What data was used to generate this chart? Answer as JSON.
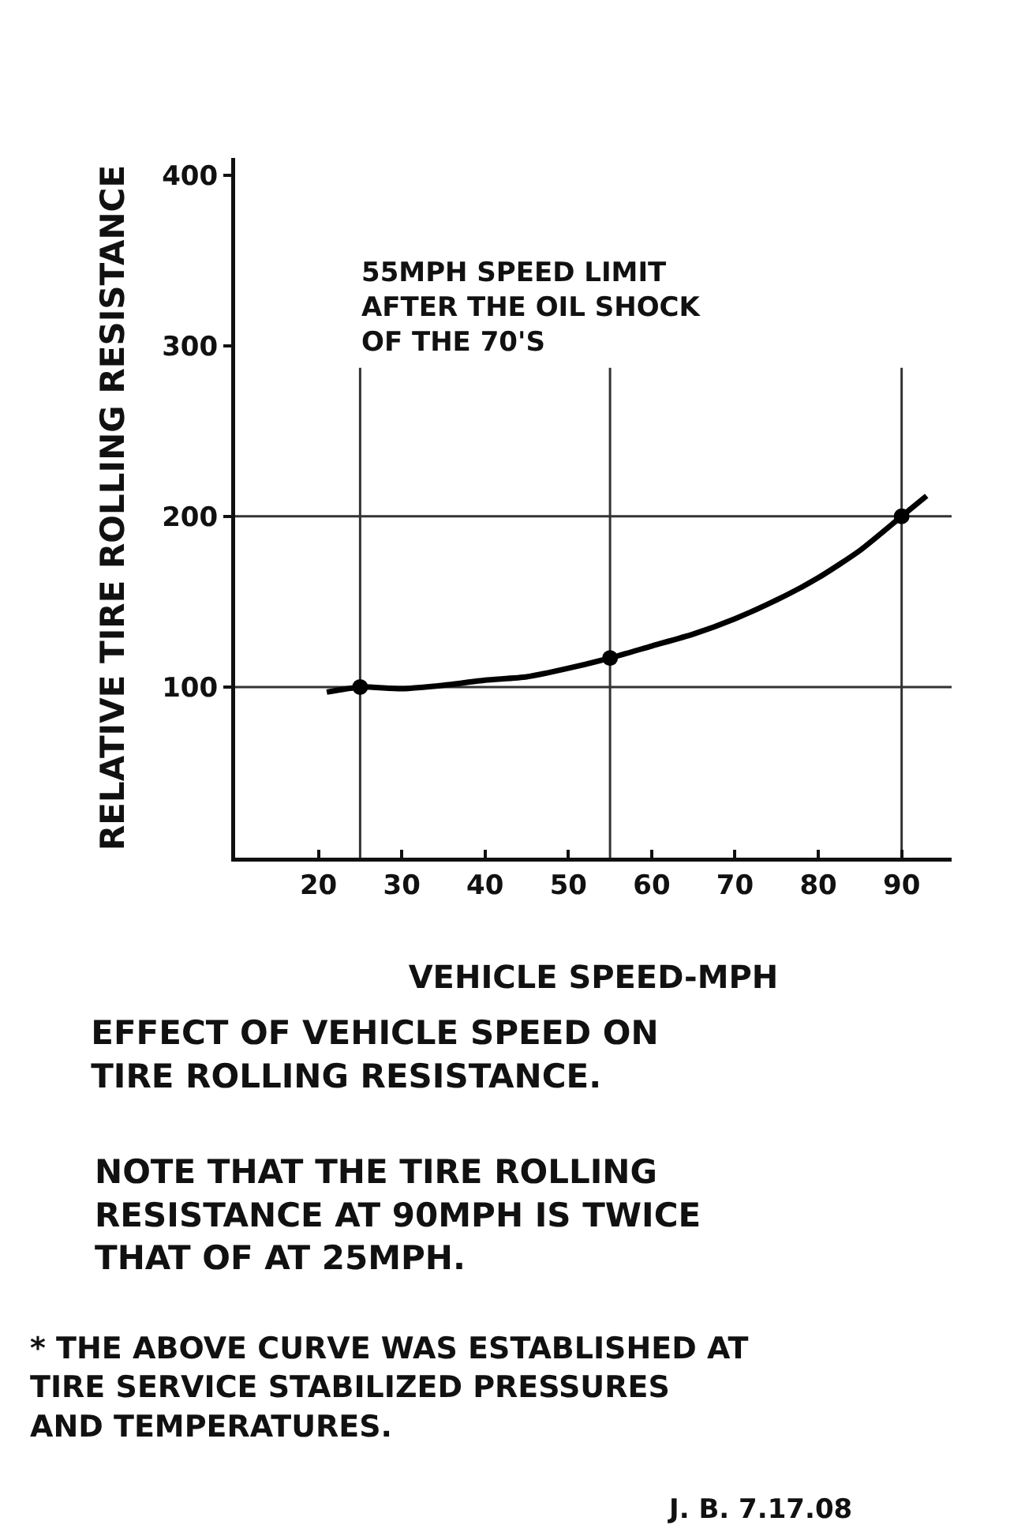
{
  "chart_data": {
    "type": "line",
    "title": "EFFECT OF VEHICLE SPEED ON TIRE ROLLING RESISTANCE.",
    "xlabel": "VEHICLE SPEED-MPH",
    "ylabel": "RELATIVE TIRE ROLLING RESISTANCE",
    "xlim": [
      10,
      96
    ],
    "xticks": [
      20,
      30,
      40,
      50,
      60,
      70,
      80,
      90
    ],
    "ylim": [
      0,
      410
    ],
    "yticks": [
      100,
      200,
      300,
      400
    ],
    "grid": false,
    "series": [
      {
        "color": "#000000",
        "marker": "none",
        "line_style": "solid",
        "x": [
          21,
          25,
          30,
          35,
          40,
          45,
          50,
          55,
          60,
          65,
          70,
          75,
          80,
          85,
          90,
          93
        ],
        "values": [
          97,
          100,
          99,
          101,
          104,
          106,
          111,
          117,
          124,
          131,
          140,
          151,
          164,
          180,
          200,
          212
        ]
      },
      {
        "type": "scatter",
        "color": "#000000",
        "marker": "circle",
        "x": [
          25,
          55,
          90
        ],
        "values": [
          100,
          117,
          200
        ]
      }
    ],
    "ref_lines": [
      {
        "axis": "x",
        "value": 25,
        "color": "#333333"
      },
      {
        "axis": "x",
        "value": 55,
        "color": "#333333",
        "label": "55MPH SPEED LIMIT AFTER THE OIL SHOCK OF THE 70'S"
      },
      {
        "axis": "x",
        "value": 90,
        "color": "#333333"
      },
      {
        "axis": "y",
        "value": 100,
        "color": "#333333"
      },
      {
        "axis": "y",
        "value": 200,
        "color": "#333333"
      }
    ],
    "annotations": [
      "NOTE THAT THE TIRE ROLLING RESISTANCE AT 90MPH IS TWICE THAT OF AT 25MPH.",
      "* THE ABOVE CURVE WAS ESTABLISHED AT TIRE SERVICE STABILIZED PRESSURES AND TEMPERATURES.",
      "J. B. 7.17.08"
    ]
  }
}
